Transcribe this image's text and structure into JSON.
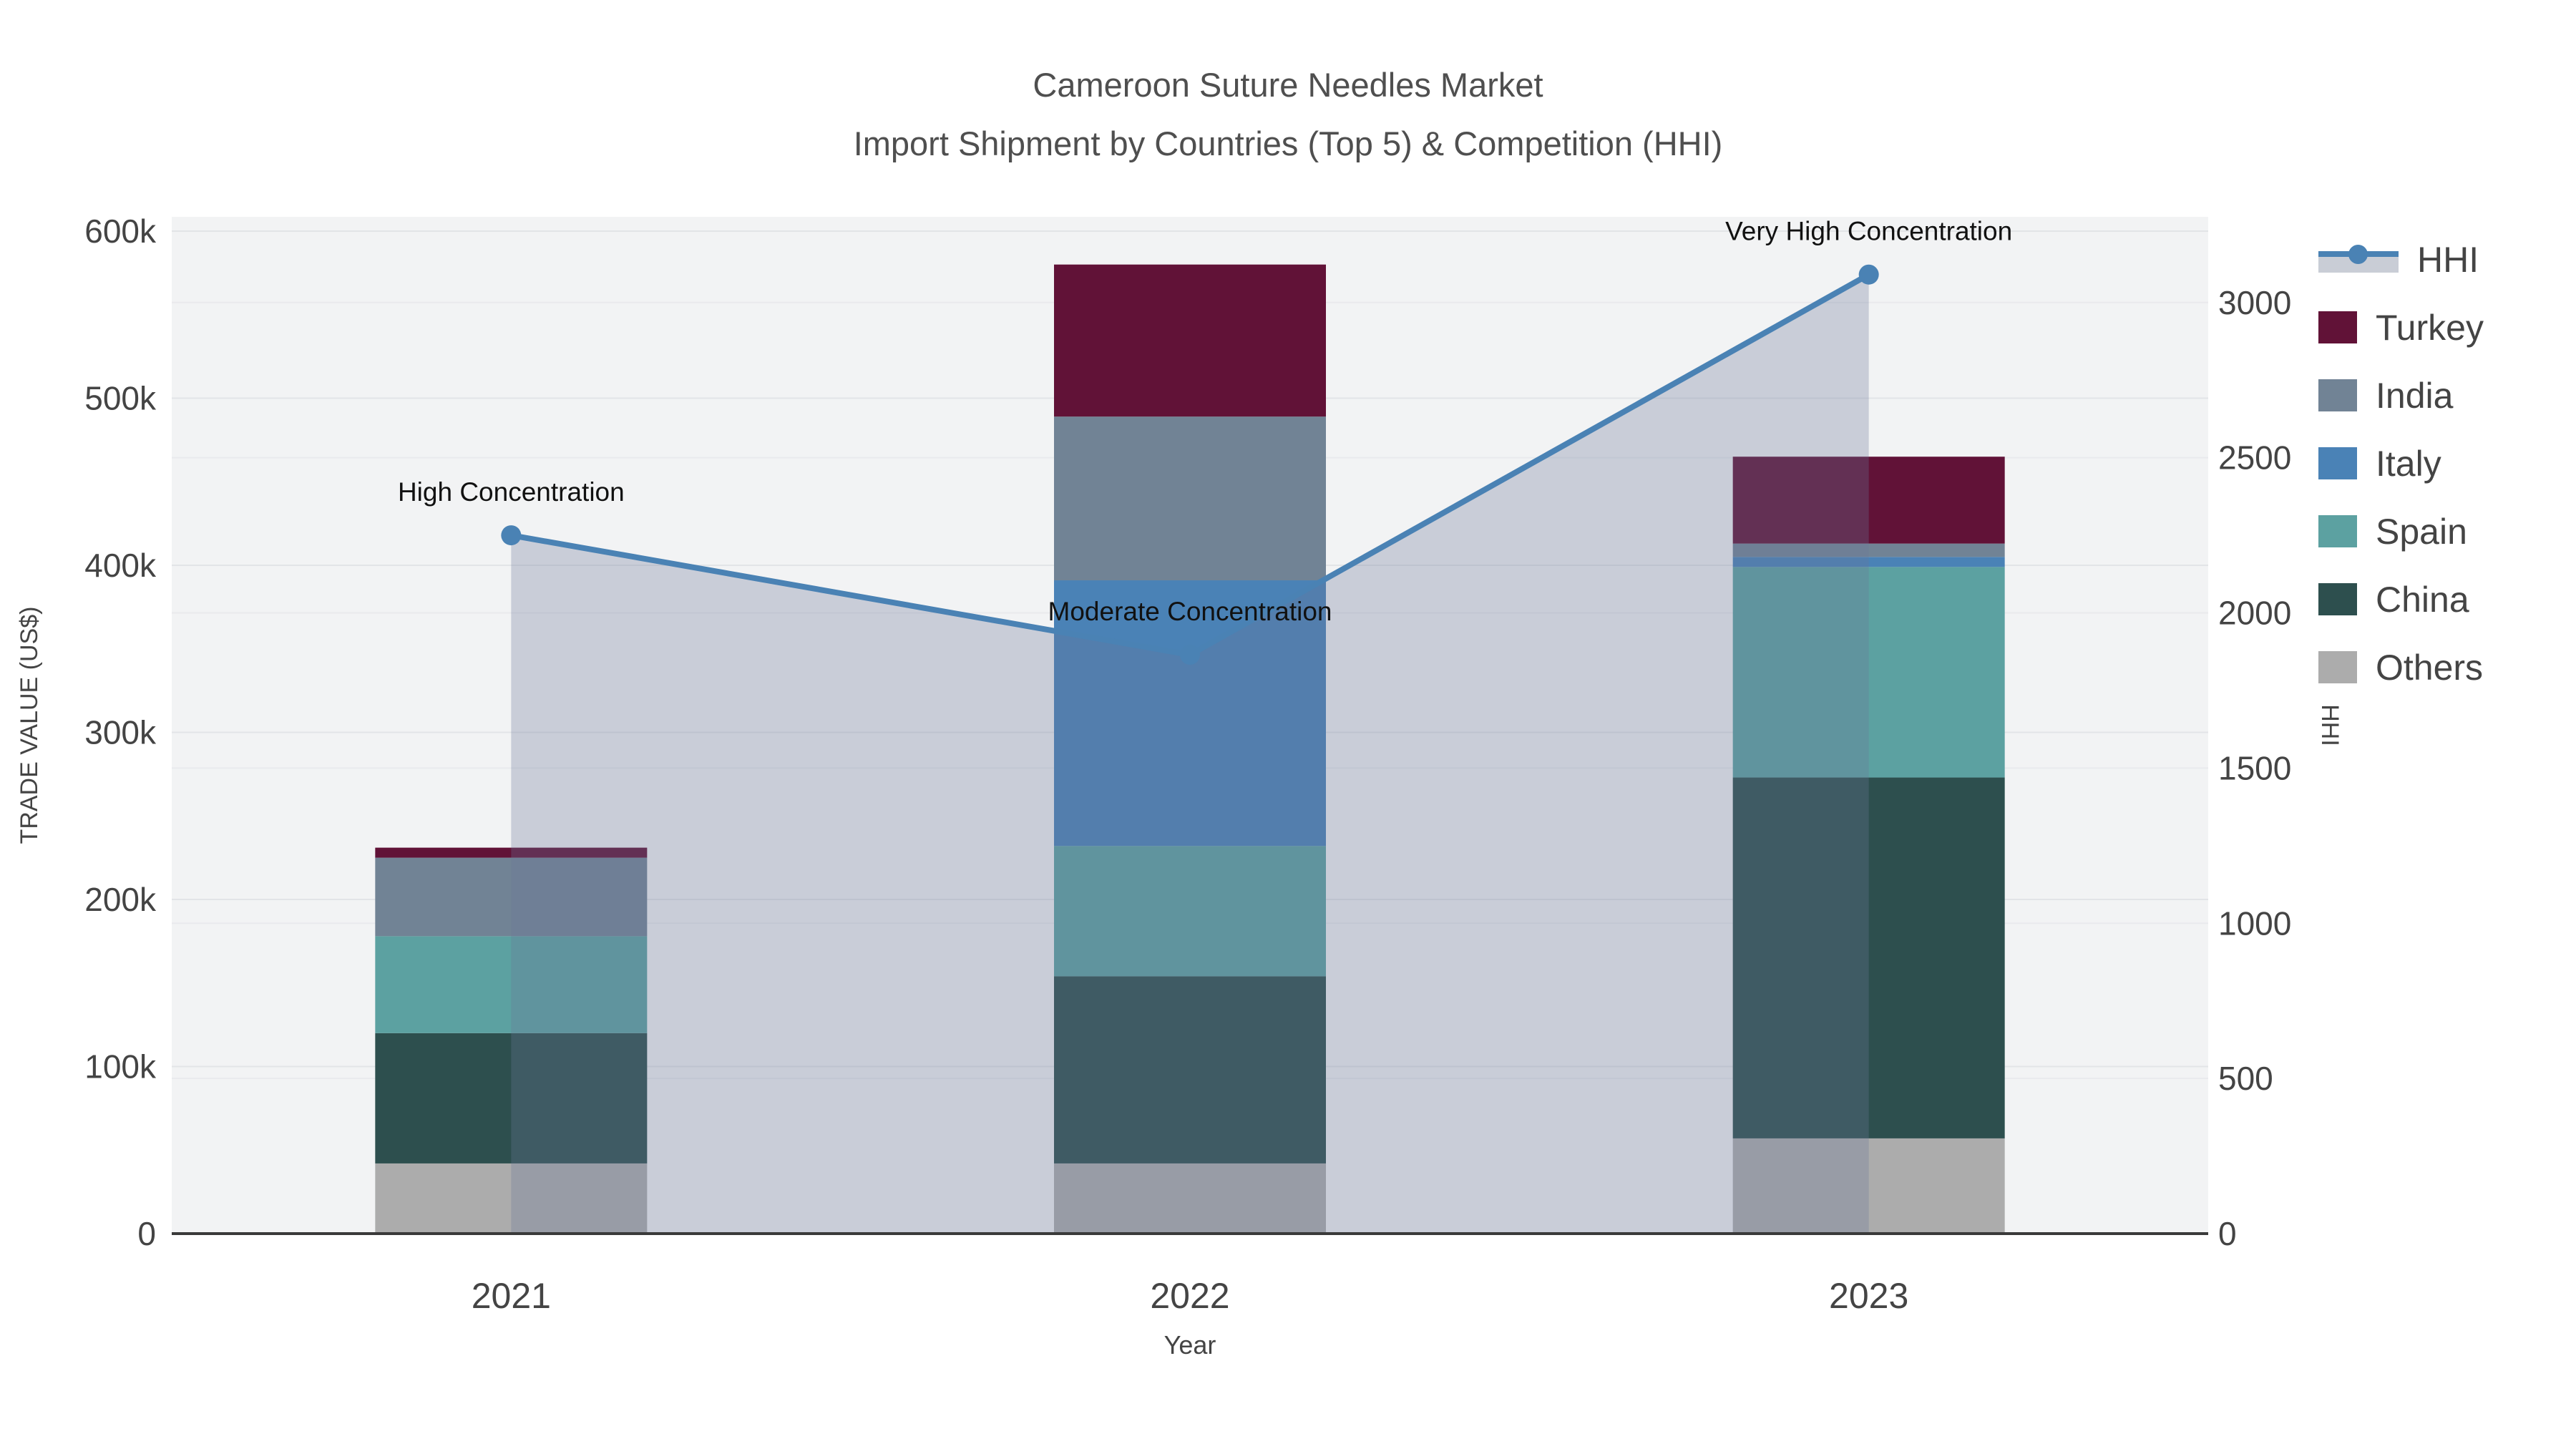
{
  "title": {
    "line1": "Cameroon Suture Needles Market",
    "line2": "Import Shipment by Countries (Top 5) & Competition (HHI)"
  },
  "chart_data": {
    "type": "bar",
    "subtype": "stacked-bar-with-line",
    "categories": [
      "2021",
      "2022",
      "2023"
    ],
    "bar_series": [
      {
        "name": "Others",
        "color": "#acacac",
        "values": [
          42000,
          42000,
          57000
        ]
      },
      {
        "name": "China",
        "color": "#2d4f4e",
        "values": [
          78000,
          112000,
          216000
        ]
      },
      {
        "name": "Spain",
        "color": "#5ca1a1",
        "values": [
          58000,
          78000,
          126000
        ]
      },
      {
        "name": "Italy",
        "color": "#4a82b6",
        "values": [
          0,
          159000,
          6000
        ]
      },
      {
        "name": "India",
        "color": "#718395",
        "values": [
          47000,
          98000,
          8000
        ]
      },
      {
        "name": "Turkey",
        "color": "#611237",
        "values": [
          6000,
          91000,
          52000
        ]
      }
    ],
    "line_series": {
      "name": "HHI",
      "color": "#4a82b4",
      "area_color": "rgba(105,120,151,0.30)",
      "values": [
        2250,
        1865,
        3090
      ]
    },
    "annotations": [
      "High Concentration",
      "Moderate Concentration",
      "Very High Concentration"
    ],
    "y_left": {
      "label": "TRADE VALUE (US$)",
      "max": 600000,
      "ticks": [
        {
          "label": "0",
          "value": 0
        },
        {
          "label": "100k",
          "value": 100000
        },
        {
          "label": "200k",
          "value": 200000
        },
        {
          "label": "300k",
          "value": 300000
        },
        {
          "label": "400k",
          "value": 400000
        },
        {
          "label": "500k",
          "value": 500000
        },
        {
          "label": "600k",
          "value": 600000
        }
      ]
    },
    "y_right": {
      "label": "HHI",
      "max": 3230,
      "ticks": [
        {
          "label": "0",
          "value": 0
        },
        {
          "label": "500",
          "value": 500
        },
        {
          "label": "1000",
          "value": 1000
        },
        {
          "label": "1500",
          "value": 1500
        },
        {
          "label": "2000",
          "value": 2000
        },
        {
          "label": "2500",
          "value": 2500
        },
        {
          "label": "3000",
          "value": 3000
        }
      ]
    },
    "x_label": "Year",
    "legend": [
      {
        "name": "HHI",
        "type": "line"
      },
      {
        "name": "Turkey",
        "type": "swatch",
        "color": "#611237"
      },
      {
        "name": "India",
        "type": "swatch",
        "color": "#718395"
      },
      {
        "name": "Italy",
        "type": "swatch",
        "color": "#4a82b6"
      },
      {
        "name": "Spain",
        "type": "swatch",
        "color": "#5ca1a1"
      },
      {
        "name": "China",
        "type": "swatch",
        "color": "#2d4f4e"
      },
      {
        "name": "Others",
        "type": "swatch",
        "color": "#acacac"
      }
    ],
    "colors": {
      "plot_background": "#f2f3f4",
      "grid_left": "#e2e4e7",
      "grid_right": "#e9eaed",
      "axis_line": "#3a3a3a",
      "tick_text": "#444444",
      "title_text": "#4f4f4f",
      "annotation_text": "#111111",
      "legend_band": "#c9cdd6"
    }
  }
}
